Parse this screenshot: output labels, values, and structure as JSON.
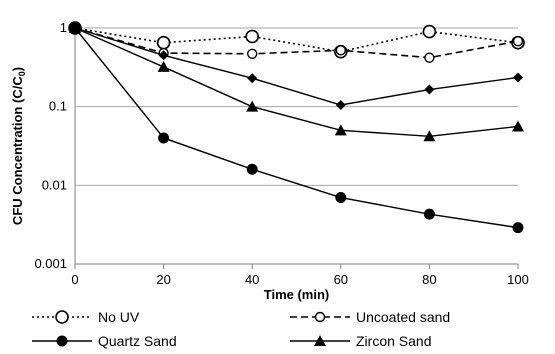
{
  "chart_data": {
    "type": "line",
    "title": "",
    "xlabel": "Time (min)",
    "ylabel": "CFU Concentration (C/C",
    "ylabel_subscript": "0",
    "ylabel_suffix": ")",
    "x": [
      0,
      20,
      40,
      60,
      80,
      100
    ],
    "xlim": [
      0,
      100
    ],
    "ylim": [
      0.001,
      1
    ],
    "yscale": "log",
    "xticks": [
      "0",
      "20",
      "40",
      "60",
      "80",
      "100"
    ],
    "yticks": [
      "0.001",
      "0.01",
      "0.1",
      "1"
    ],
    "grid": "horizontal",
    "legend_position": "bottom",
    "series": [
      {
        "name": "No UV",
        "line": "dotted",
        "marker": "open-circle-large",
        "values": [
          1,
          0.65,
          0.78,
          0.5,
          0.9,
          0.65
        ]
      },
      {
        "name": "Uncoated sand",
        "line": "dashed",
        "marker": "open-circle-small",
        "values": [
          1,
          0.48,
          0.47,
          0.52,
          0.42,
          0.68
        ]
      },
      {
        "name": "Quartz Sand",
        "line": "solid",
        "marker": "filled-circle",
        "values": [
          1,
          0.04,
          0.016,
          0.007,
          0.0043,
          0.0029
        ]
      },
      {
        "name": "Zircon Sand",
        "line": "solid",
        "marker": "filled-triangle",
        "values": [
          1,
          0.32,
          0.1,
          0.05,
          0.042,
          0.056
        ]
      },
      {
        "name": "",
        "line": "solid",
        "marker": "filled-diamond",
        "values": [
          1,
          0.45,
          0.23,
          0.105,
          0.165,
          0.235
        ]
      }
    ]
  }
}
